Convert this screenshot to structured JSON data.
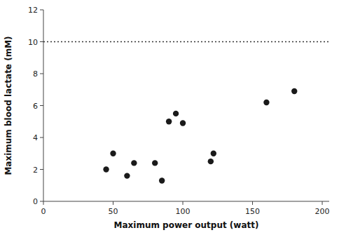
{
  "chart_data": {
    "type": "scatter",
    "x": [
      45,
      50,
      60,
      65,
      80,
      85,
      90,
      95,
      100,
      120,
      122,
      160,
      180
    ],
    "y": [
      2.0,
      3.0,
      1.6,
      2.4,
      2.4,
      1.3,
      5.0,
      5.5,
      4.9,
      2.5,
      3.0,
      6.2,
      6.9
    ],
    "color": "#1a1a1a",
    "marker": "circle",
    "hline": {
      "y": 10,
      "line_style": "dotted",
      "color": "#333333"
    },
    "xlim": [
      0,
      205
    ],
    "ylim": [
      0,
      12
    ],
    "xticks": [
      0,
      50,
      100,
      150,
      200
    ],
    "yticks": [
      0,
      2,
      4,
      6,
      8,
      10,
      12
    ],
    "xlabel": "Maximum power output (watt)",
    "ylabel": "Maximum blood lactate (mM)",
    "grid": false
  }
}
